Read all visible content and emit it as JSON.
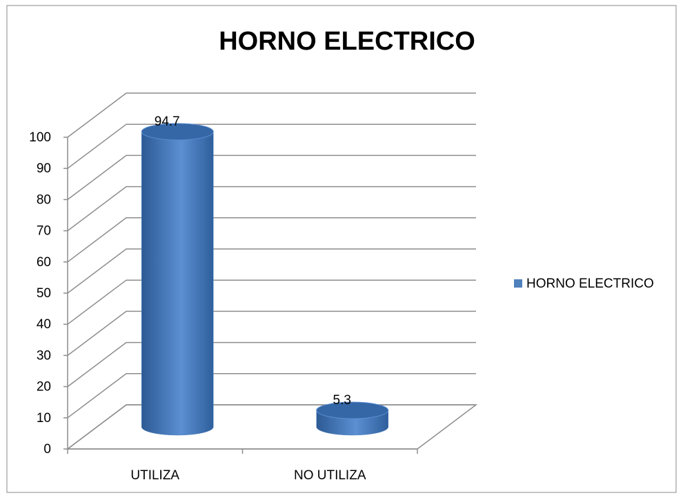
{
  "chart_data": {
    "type": "bar",
    "title": "HORNO ELECTRICO",
    "categories": [
      "UTILIZA",
      "NO UTILIZA"
    ],
    "series": [
      {
        "name": "HORNO ELECTRICO",
        "color": "#4f81bd",
        "values": [
          94.7,
          5.3
        ]
      }
    ],
    "ylim": [
      0,
      100
    ],
    "yticks": [
      0,
      10,
      20,
      30,
      40,
      50,
      60,
      70,
      80,
      90,
      100
    ],
    "grid": true,
    "legend": "right"
  }
}
